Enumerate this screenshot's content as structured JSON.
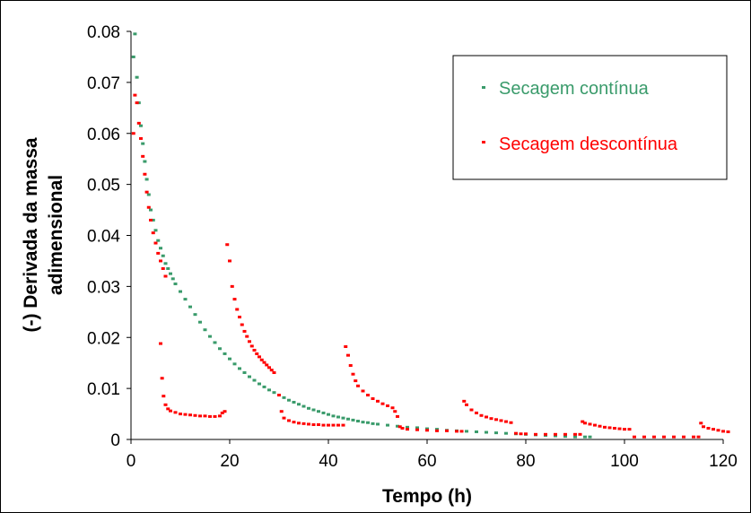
{
  "chart_data": {
    "type": "scatter",
    "title": "",
    "xlabel": "Tempo (h)",
    "ylabel_lines": [
      "(-) Derivada da massa",
      "adimensional"
    ],
    "xlim": [
      0,
      120
    ],
    "ylim": [
      0,
      0.08
    ],
    "xticks": [
      0,
      20,
      40,
      60,
      80,
      100,
      120
    ],
    "yticks": [
      0,
      0.01,
      0.02,
      0.03,
      0.04,
      0.05,
      0.06,
      0.07,
      0.08
    ],
    "xtick_labels": [
      "0",
      "20",
      "40",
      "60",
      "80",
      "100",
      "120"
    ],
    "ytick_labels": [
      "0",
      "0.01",
      "0.02",
      "0.03",
      "0.04",
      "0.05",
      "0.06",
      "0.07",
      "0.08"
    ],
    "grid": false,
    "legend_position": "top-right",
    "series": [
      {
        "name": "Secagem contínua",
        "color": "#3a9b6b",
        "points": [
          [
            0.5,
            0.075
          ],
          [
            0.8,
            0.0795
          ],
          [
            1.2,
            0.071
          ],
          [
            1.6,
            0.066
          ],
          [
            2.0,
            0.0615
          ],
          [
            2.4,
            0.058
          ],
          [
            2.8,
            0.0545
          ],
          [
            3.2,
            0.051
          ],
          [
            3.6,
            0.048
          ],
          [
            4.0,
            0.045
          ],
          [
            4.5,
            0.043
          ],
          [
            5.0,
            0.041
          ],
          [
            5.5,
            0.039
          ],
          [
            6.0,
            0.0375
          ],
          [
            6.5,
            0.036
          ],
          [
            7.0,
            0.0345
          ],
          [
            7.5,
            0.0335
          ],
          [
            8.0,
            0.0325
          ],
          [
            8.5,
            0.0315
          ],
          [
            9.0,
            0.0305
          ],
          [
            10,
            0.029
          ],
          [
            11,
            0.0275
          ],
          [
            12,
            0.026
          ],
          [
            13,
            0.0245
          ],
          [
            14,
            0.023
          ],
          [
            15,
            0.0215
          ],
          [
            16,
            0.0202
          ],
          [
            17,
            0.019
          ],
          [
            18,
            0.0178
          ],
          [
            19,
            0.0168
          ],
          [
            20,
            0.0158
          ],
          [
            21,
            0.0148
          ],
          [
            22,
            0.0139
          ],
          [
            23,
            0.0131
          ],
          [
            24,
            0.0123
          ],
          [
            25,
            0.0116
          ],
          [
            26,
            0.0109
          ],
          [
            27,
            0.0103
          ],
          [
            28,
            0.0097
          ],
          [
            29,
            0.0092
          ],
          [
            30,
            0.0087
          ],
          [
            31,
            0.0082
          ],
          [
            32,
            0.0077
          ],
          [
            33,
            0.0073
          ],
          [
            34,
            0.0069
          ],
          [
            35,
            0.0065
          ],
          [
            36,
            0.0061
          ],
          [
            37,
            0.0058
          ],
          [
            38,
            0.0055
          ],
          [
            39,
            0.0052
          ],
          [
            40,
            0.0049
          ],
          [
            41,
            0.0046
          ],
          [
            42,
            0.0044
          ],
          [
            43,
            0.0042
          ],
          [
            44,
            0.004
          ],
          [
            45,
            0.0038
          ],
          [
            46,
            0.0036
          ],
          [
            47,
            0.0034
          ],
          [
            48,
            0.0033
          ],
          [
            49,
            0.0031
          ],
          [
            50,
            0.003
          ],
          [
            52,
            0.0028
          ],
          [
            54,
            0.0026
          ],
          [
            56,
            0.0024
          ],
          [
            58,
            0.0023
          ],
          [
            60,
            0.0021
          ],
          [
            62,
            0.002
          ],
          [
            64,
            0.0018
          ],
          [
            66,
            0.0017
          ],
          [
            68,
            0.0016
          ],
          [
            70,
            0.0015
          ],
          [
            72,
            0.0014
          ],
          [
            74,
            0.0013
          ],
          [
            76,
            0.0012
          ],
          [
            78,
            0.0011
          ],
          [
            80,
            0.001
          ],
          [
            82,
            0.0009
          ],
          [
            84,
            0.0008
          ],
          [
            86,
            0.0007
          ],
          [
            88,
            0.0006
          ],
          [
            90,
            0.0005
          ],
          [
            92,
            0.0005
          ],
          [
            93,
            0.0005
          ]
        ]
      },
      {
        "name": "Secagem descontínua",
        "color": "#ff0000",
        "points": [
          [
            0.5,
            0.06
          ],
          [
            0.8,
            0.0675
          ],
          [
            1.2,
            0.066
          ],
          [
            1.6,
            0.062
          ],
          [
            2.0,
            0.059
          ],
          [
            2.4,
            0.0555
          ],
          [
            2.8,
            0.052
          ],
          [
            3.2,
            0.0485
          ],
          [
            3.6,
            0.0455
          ],
          [
            4.0,
            0.043
          ],
          [
            4.5,
            0.0405
          ],
          [
            5.0,
            0.0385
          ],
          [
            5.5,
            0.0365
          ],
          [
            6.0,
            0.035
          ],
          [
            6.5,
            0.0335
          ],
          [
            7.0,
            0.032
          ],
          [
            6.0,
            0.0188
          ],
          [
            6.3,
            0.012
          ],
          [
            6.6,
            0.0085
          ],
          [
            7.0,
            0.0068
          ],
          [
            7.5,
            0.006
          ],
          [
            8,
            0.0056
          ],
          [
            9,
            0.0053
          ],
          [
            10,
            0.005
          ],
          [
            11,
            0.0049
          ],
          [
            12,
            0.0048
          ],
          [
            13,
            0.0047
          ],
          [
            14,
            0.0046
          ],
          [
            15,
            0.0046
          ],
          [
            16,
            0.0045
          ],
          [
            17,
            0.0045
          ],
          [
            18,
            0.0046
          ],
          [
            18.5,
            0.0052
          ],
          [
            19,
            0.0055
          ],
          [
            19.5,
            0.0382
          ],
          [
            20,
            0.035
          ],
          [
            20.5,
            0.03
          ],
          [
            21,
            0.0275
          ],
          [
            21.5,
            0.0255
          ],
          [
            22,
            0.024
          ],
          [
            22.5,
            0.0225
          ],
          [
            23,
            0.0212
          ],
          [
            23.5,
            0.0202
          ],
          [
            24,
            0.0192
          ],
          [
            24.5,
            0.0183
          ],
          [
            25,
            0.0175
          ],
          [
            25.5,
            0.0168
          ],
          [
            26,
            0.0162
          ],
          [
            26.5,
            0.0156
          ],
          [
            27,
            0.0151
          ],
          [
            27.5,
            0.0146
          ],
          [
            28,
            0.0141
          ],
          [
            28.5,
            0.0136
          ],
          [
            29,
            0.0131
          ],
          [
            30,
            0.0087
          ],
          [
            30.5,
            0.0055
          ],
          [
            31,
            0.0042
          ],
          [
            32,
            0.0037
          ],
          [
            33,
            0.0034
          ],
          [
            34,
            0.0032
          ],
          [
            35,
            0.0031
          ],
          [
            36,
            0.003
          ],
          [
            37,
            0.0029
          ],
          [
            38,
            0.0029
          ],
          [
            39,
            0.0028
          ],
          [
            40,
            0.0028
          ],
          [
            41,
            0.0028
          ],
          [
            42,
            0.0028
          ],
          [
            43,
            0.0028
          ],
          [
            43.5,
            0.0182
          ],
          [
            44,
            0.0165
          ],
          [
            44.5,
            0.0145
          ],
          [
            45,
            0.0128
          ],
          [
            45.5,
            0.0115
          ],
          [
            46,
            0.0105
          ],
          [
            47,
            0.0095
          ],
          [
            48,
            0.0087
          ],
          [
            49,
            0.008
          ],
          [
            50,
            0.0075
          ],
          [
            51,
            0.007
          ],
          [
            52,
            0.0066
          ],
          [
            53,
            0.0062
          ],
          [
            53.5,
            0.0055
          ],
          [
            54,
            0.0045
          ],
          [
            54.5,
            0.0025
          ],
          [
            55,
            0.0022
          ],
          [
            56,
            0.002
          ],
          [
            58,
            0.0019
          ],
          [
            60,
            0.0018
          ],
          [
            62,
            0.0017
          ],
          [
            64,
            0.0017
          ],
          [
            66,
            0.0016
          ],
          [
            67,
            0.0016
          ],
          [
            67.5,
            0.0075
          ],
          [
            68,
            0.0068
          ],
          [
            69,
            0.0058
          ],
          [
            70,
            0.0052
          ],
          [
            71,
            0.0047
          ],
          [
            72,
            0.0044
          ],
          [
            73,
            0.0041
          ],
          [
            74,
            0.0039
          ],
          [
            75,
            0.0037
          ],
          [
            76,
            0.0035
          ],
          [
            77,
            0.0033
          ],
          [
            78,
            0.0012
          ],
          [
            79,
            0.0011
          ],
          [
            80,
            0.0011
          ],
          [
            82,
            0.001
          ],
          [
            84,
            0.001
          ],
          [
            86,
            0.001
          ],
          [
            88,
            0.001
          ],
          [
            90,
            0.001
          ],
          [
            91,
            0.001
          ],
          [
            91.5,
            0.0035
          ],
          [
            92,
            0.0032
          ],
          [
            93,
            0.003
          ],
          [
            94,
            0.0028
          ],
          [
            95,
            0.0026
          ],
          [
            96,
            0.0024
          ],
          [
            97,
            0.0023
          ],
          [
            98,
            0.0022
          ],
          [
            99,
            0.0021
          ],
          [
            100,
            0.002
          ],
          [
            101,
            0.002
          ],
          [
            102,
            0.0005
          ],
          [
            104,
            0.0005
          ],
          [
            106,
            0.0005
          ],
          [
            108,
            0.0005
          ],
          [
            110,
            0.0005
          ],
          [
            112,
            0.0005
          ],
          [
            114,
            0.0005
          ],
          [
            115,
            0.0005
          ],
          [
            115.5,
            0.0032
          ],
          [
            116,
            0.0025
          ],
          [
            117,
            0.0022
          ],
          [
            118,
            0.002
          ],
          [
            119,
            0.0018
          ],
          [
            120,
            0.0016
          ],
          [
            121,
            0.0015
          ]
        ]
      }
    ]
  }
}
